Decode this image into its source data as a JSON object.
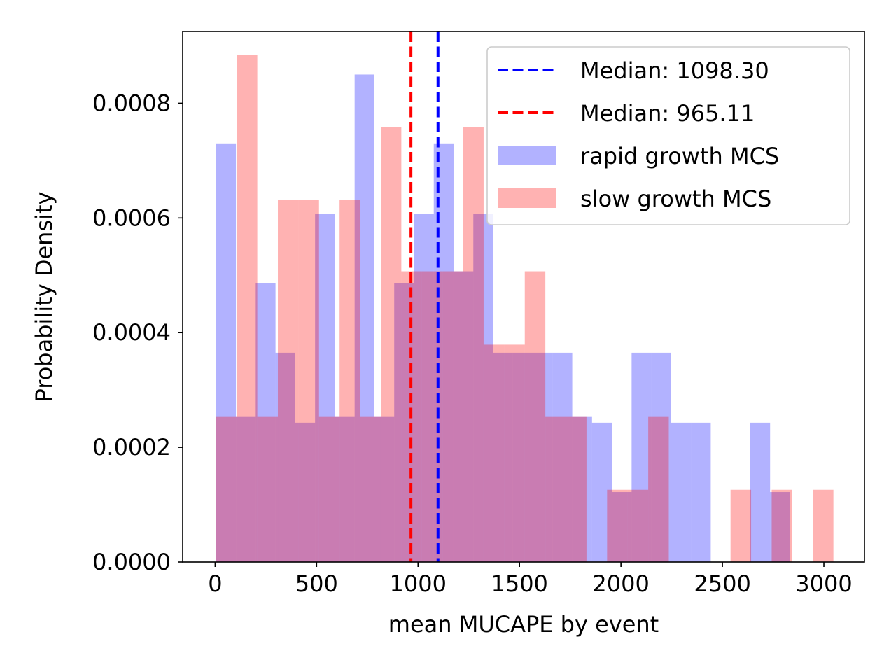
{
  "chart_data": {
    "type": "bar",
    "xlabel": "mean MUCAPE by event",
    "ylabel": "Probability Density",
    "xlim": [
      -160,
      3200
    ],
    "ylim": [
      0,
      0.000925
    ],
    "grid": false,
    "legend_position": "top-right",
    "x_ticks": [
      {
        "value": 0,
        "label": "0"
      },
      {
        "value": 500,
        "label": "500"
      },
      {
        "value": 1000,
        "label": "1000"
      },
      {
        "value": 1500,
        "label": "1500"
      },
      {
        "value": 2000,
        "label": "2000"
      },
      {
        "value": 2500,
        "label": "2500"
      },
      {
        "value": 3000,
        "label": "3000"
      }
    ],
    "y_ticks": [
      {
        "value": 0,
        "label": "0.0000"
      },
      {
        "value": 0.0002,
        "label": "0.0002"
      },
      {
        "value": 0.0004,
        "label": "0.0004"
      },
      {
        "value": 0.0006,
        "label": "0.0006"
      },
      {
        "value": 0.0008,
        "label": "0.0008"
      }
    ],
    "series": [
      {
        "name": "rapid growth MCS",
        "color": "#0000ff",
        "opacity": 0.3,
        "bin_start": 5,
        "bin_width": 97.5,
        "values": [
          0.00073,
          0.000253,
          0.000486,
          0.000365,
          0.000243,
          0.000607,
          0.000253,
          0.00085,
          0.000253,
          0.000486,
          0.000607,
          0.00073,
          0.000507,
          0.000607,
          0.000365,
          0.000365,
          0.000365,
          0.000365,
          0.000253,
          0.000243,
          0.000122,
          0.000365,
          0.000365,
          0.000243,
          0.000243,
          0.0,
          0.0,
          0.000243,
          0.000122
        ]
      },
      {
        "name": "slow growth MCS",
        "color": "#ff0000",
        "opacity": 0.3,
        "bin_start": 5,
        "bin_width": 101.4,
        "values": [
          0.000253,
          0.000884,
          0.000253,
          0.000632,
          0.000632,
          0.000253,
          0.000632,
          0.000253,
          0.000758,
          0.000507,
          0.000507,
          0.000507,
          0.000758,
          0.000379,
          0.000379,
          0.000507,
          0.000253,
          0.000253,
          0.0,
          0.000126,
          0.000126,
          0.000253,
          0.0,
          0.0,
          0.0,
          0.000126,
          0.0,
          0.000126,
          0.0,
          0.000126
        ]
      }
    ],
    "medians": [
      {
        "name": "Median: 1098.30",
        "value": 1098.3,
        "color": "#0000ff"
      },
      {
        "name": "Median: 965.11",
        "value": 965.11,
        "color": "#ff0000"
      }
    ]
  }
}
